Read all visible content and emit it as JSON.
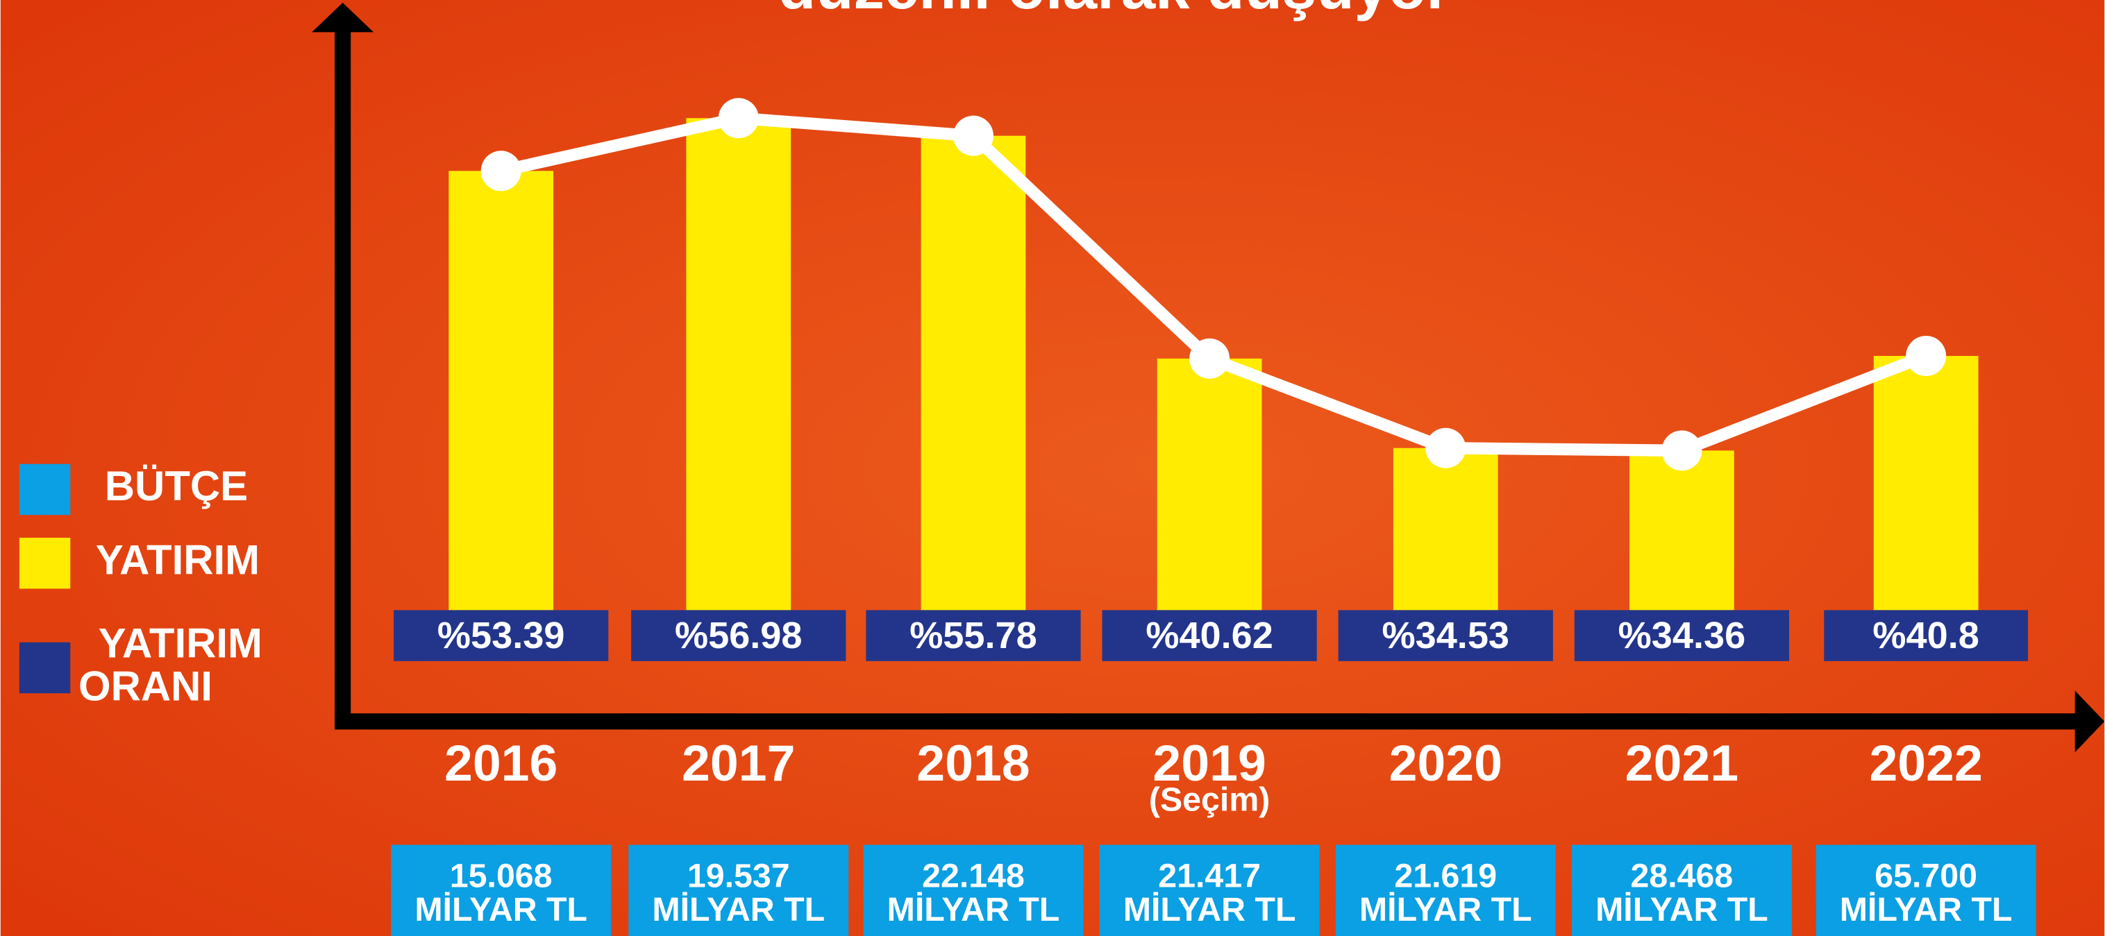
{
  "chart_data": {
    "type": "bar",
    "title": "düzenli olarak düşüyor",
    "categories": [
      "2016",
      "2017",
      "2018",
      "2019",
      "2020",
      "2021",
      "2022"
    ],
    "annotations": [
      {
        "category": 3,
        "text": "(Seçim)"
      }
    ],
    "budget_unit": "MİLYAR TL",
    "ylim": [
      23.5,
      60
    ],
    "series": [
      {
        "name": "BÜTÇE",
        "color": "#0b9fe3",
        "values": [
          15.068,
          19.537,
          22.148,
          21.417,
          21.619,
          28.468,
          65.7
        ],
        "value_labels": [
          "15.068",
          "19.537",
          "22.148",
          "21.417",
          "21.619",
          "28.468",
          "65.700"
        ]
      },
      {
        "name": "YATIRIM",
        "color": "#ffec00",
        "line_color": "#ffffff",
        "values": [
          53.39,
          56.98,
          55.78,
          40.62,
          34.53,
          34.36,
          40.8
        ]
      },
      {
        "name": "YATIRIM ORANI",
        "color": "#23358a",
        "values": [
          53.39,
          56.98,
          55.78,
          40.62,
          34.53,
          34.36,
          40.8
        ],
        "value_labels": [
          "%53.39",
          "%56.98",
          "%55.78",
          "%40.62",
          "%34.53",
          "%34.36",
          "%40.8"
        ]
      }
    ]
  }
}
